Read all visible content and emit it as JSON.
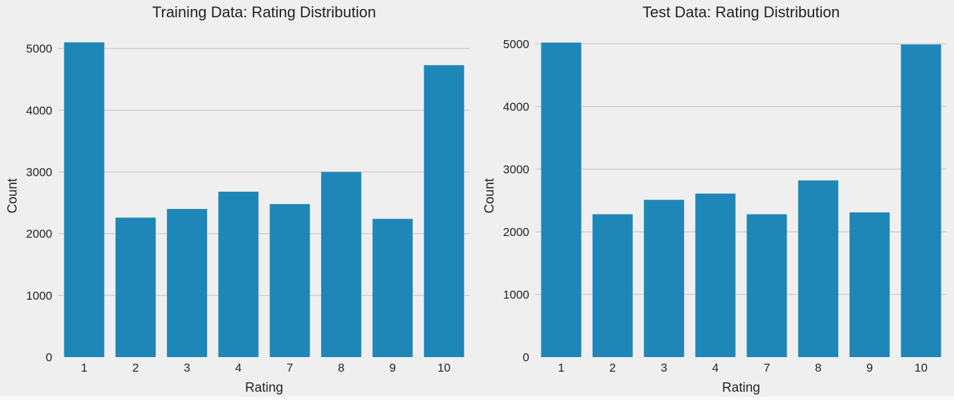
{
  "figure": {
    "background_color": "#efefef",
    "gridline_color": "#cfcfcf",
    "bar_color": "#1f86b8",
    "text_color": "#222222"
  },
  "chart_data": [
    {
      "type": "bar",
      "title": "Training Data: Rating Distribution",
      "xlabel": "Rating",
      "ylabel": "Count",
      "categories": [
        "1",
        "2",
        "3",
        "4",
        "7",
        "8",
        "9",
        "10"
      ],
      "values": [
        5100,
        2260,
        2400,
        2680,
        2480,
        3000,
        2240,
        4730
      ],
      "yticks": [
        0,
        1000,
        2000,
        3000,
        4000,
        5000
      ],
      "ylim": [
        0,
        5360
      ],
      "grid": true,
      "legend": false
    },
    {
      "type": "bar",
      "title": "Test Data: Rating Distribution",
      "xlabel": "Rating",
      "ylabel": "Count",
      "categories": [
        "1",
        "2",
        "3",
        "4",
        "7",
        "8",
        "9",
        "10"
      ],
      "values": [
        5020,
        2280,
        2510,
        2610,
        2280,
        2820,
        2310,
        4990
      ],
      "yticks": [
        0,
        1000,
        2000,
        3000,
        4000,
        5000
      ],
      "ylim": [
        0,
        5280
      ],
      "grid": true,
      "legend": false
    }
  ]
}
